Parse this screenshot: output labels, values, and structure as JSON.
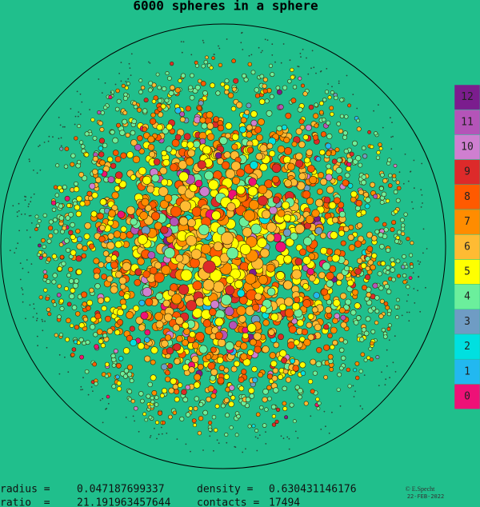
{
  "title": "6000 spheres in a sphere",
  "legend": [
    {
      "label": "12",
      "color": "#7b1d8e"
    },
    {
      "label": "11",
      "color": "#b454b8"
    },
    {
      "label": "10",
      "color": "#cf7fd0"
    },
    {
      "label": "9",
      "color": "#dd2a2a"
    },
    {
      "label": "8",
      "color": "#ff5a00"
    },
    {
      "label": "7",
      "color": "#ff8c00"
    },
    {
      "label": "6",
      "color": "#ffbb33"
    },
    {
      "label": "5",
      "color": "#ffff00"
    },
    {
      "label": "4",
      "color": "#6bef9c"
    },
    {
      "label": "3",
      "color": "#6f9cc4"
    },
    {
      "label": "2",
      "color": "#00e0e0"
    },
    {
      "label": "1",
      "color": "#22b8f0"
    },
    {
      "label": "0",
      "color": "#ee1177"
    }
  ],
  "stats": [
    [
      {
        "label": "radius =",
        "value": "0.047187699337"
      },
      {
        "label": "density =",
        "value": "0.630431146176"
      }
    ],
    [
      {
        "label": "ratio  =",
        "value": "21.191963457644"
      },
      {
        "label": "contacts =",
        "value": "17494"
      }
    ]
  ],
  "credit": "© E.Specht",
  "date": "22-FEB-2022"
}
